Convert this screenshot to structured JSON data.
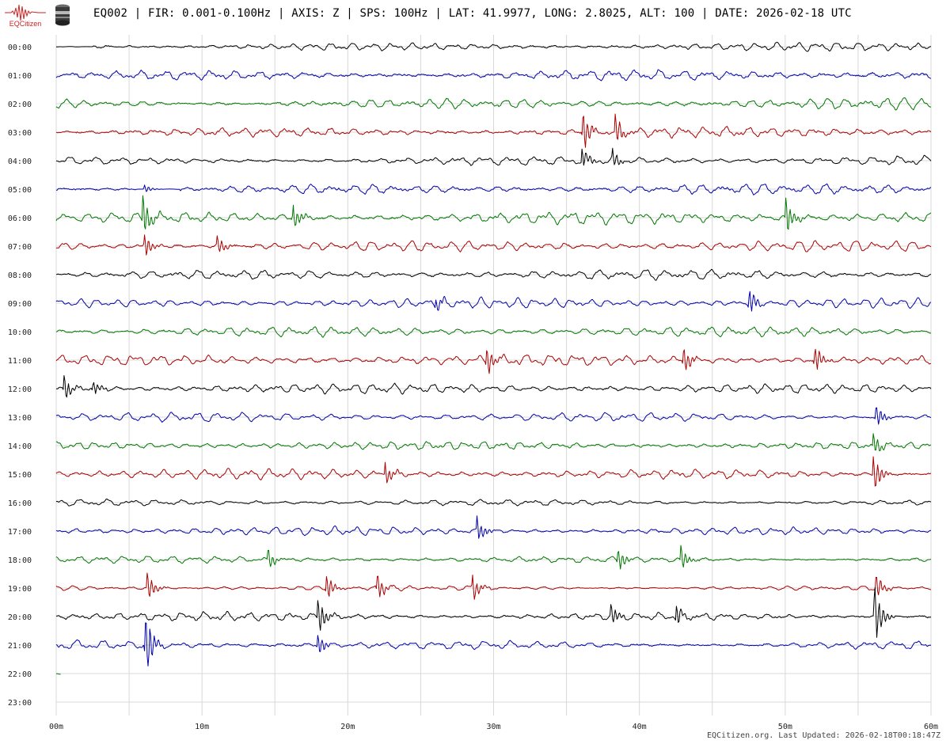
{
  "header": {
    "logo_text": "EQCitizen",
    "logo_icon": "seismogram-logo-icon",
    "sensor_icon": "seismometer-sensor-icon",
    "title": "EQ002 | FIR: 0.001-0.100Hz | AXIS: Z | SPS: 100Hz | LAT: 41.9977, LONG: 2.8025, ALT: 100 | DATE: 2026-02-18 UTC"
  },
  "footer": {
    "text": "EQCitizen.org. Last Updated: 2026-02-18T00:18:47Z"
  },
  "colors": {
    "black": "#000000",
    "blue": "#0000aa",
    "green": "#007700",
    "red": "#aa0000",
    "grid": "#d8d8d8",
    "logo_red": "#cc2222"
  },
  "chart_data": {
    "type": "line",
    "title": "",
    "xlabel": "",
    "ylabel": "",
    "xlim": [
      0,
      60
    ],
    "x_ticks": [
      0,
      10,
      20,
      30,
      40,
      50,
      60
    ],
    "x_tick_labels": [
      "00m",
      "10m",
      "20m",
      "30m",
      "40m",
      "50m",
      "60m"
    ],
    "grid": true,
    "row_labels": [
      "00:00",
      "01:00",
      "02:00",
      "03:00",
      "04:00",
      "05:00",
      "06:00",
      "07:00",
      "08:00",
      "09:00",
      "10:00",
      "11:00",
      "12:00",
      "13:00",
      "14:00",
      "15:00",
      "16:00",
      "17:00",
      "18:00",
      "19:00",
      "20:00",
      "21:00",
      "22:00",
      "23:00"
    ],
    "row_color_cycle": [
      "#000000",
      "#0000aa",
      "#007700",
      "#aa0000"
    ],
    "series": [
      {
        "hour": "00:00",
        "start_min": 0,
        "end_min": 60,
        "amplitude": 0.3,
        "quiet_until_min": 2.5,
        "events": []
      },
      {
        "hour": "01:00",
        "start_min": 0,
        "end_min": 60,
        "amplitude": 0.38,
        "events": []
      },
      {
        "hour": "02:00",
        "start_min": 0,
        "end_min": 60,
        "amplitude": 0.36,
        "events": []
      },
      {
        "hour": "03:00",
        "start_min": 0,
        "end_min": 60,
        "amplitude": 0.34,
        "events": [
          {
            "min": 36.1,
            "amp": 1.4
          },
          {
            "min": 38.3,
            "amp": 1.2
          }
        ]
      },
      {
        "hour": "04:00",
        "start_min": 0,
        "end_min": 60,
        "amplitude": 0.3,
        "events": [
          {
            "min": 36.0,
            "amp": 0.9
          },
          {
            "min": 38.1,
            "amp": 0.7
          }
        ]
      },
      {
        "hour": "05:00",
        "start_min": 0,
        "end_min": 60,
        "amplitude": 0.32,
        "quiet_from_min": 5.5,
        "quiet_until_min": 8.5,
        "events": [
          {
            "min": 6.0,
            "amp": 0.3
          }
        ]
      },
      {
        "hour": "06:00",
        "start_min": 0,
        "end_min": 60,
        "amplitude": 0.4,
        "events": [
          {
            "min": 5.9,
            "amp": 1.6
          },
          {
            "min": 16.2,
            "amp": 1.0
          },
          {
            "min": 50.0,
            "amp": 1.4
          }
        ]
      },
      {
        "hour": "07:00",
        "start_min": 0,
        "end_min": 60,
        "amplitude": 0.34,
        "events": [
          {
            "min": 6.0,
            "amp": 0.9
          },
          {
            "min": 11.0,
            "amp": 0.8
          }
        ]
      },
      {
        "hour": "08:00",
        "start_min": 0,
        "end_min": 60,
        "amplitude": 0.3,
        "events": []
      },
      {
        "hour": "09:00",
        "start_min": 0,
        "end_min": 60,
        "amplitude": 0.32,
        "events": [
          {
            "min": 26.0,
            "amp": 0.6
          },
          {
            "min": 47.5,
            "amp": 1.0
          }
        ]
      },
      {
        "hour": "10:00",
        "start_min": 0,
        "end_min": 60,
        "amplitude": 0.3,
        "events": []
      },
      {
        "hour": "11:00",
        "start_min": 0,
        "end_min": 60,
        "amplitude": 0.34,
        "events": [
          {
            "min": 29.5,
            "amp": 1.0
          },
          {
            "min": 43.0,
            "amp": 1.0
          },
          {
            "min": 52.0,
            "amp": 1.0
          }
        ]
      },
      {
        "hour": "12:00",
        "start_min": 0,
        "end_min": 60,
        "amplitude": 0.3,
        "events": [
          {
            "min": 0.5,
            "amp": 1.0
          },
          {
            "min": 2.5,
            "amp": 0.6
          }
        ]
      },
      {
        "hour": "13:00",
        "start_min": 0,
        "end_min": 60,
        "amplitude": 0.28,
        "events": [
          {
            "min": 56.2,
            "amp": 0.9
          }
        ]
      },
      {
        "hour": "14:00",
        "start_min": 0,
        "end_min": 60,
        "amplitude": 0.26,
        "events": [
          {
            "min": 56.0,
            "amp": 0.8
          }
        ]
      },
      {
        "hour": "15:00",
        "start_min": 0,
        "end_min": 60,
        "amplitude": 0.32,
        "events": [
          {
            "min": 22.5,
            "amp": 0.9
          },
          {
            "min": 56.0,
            "amp": 1.5
          }
        ]
      },
      {
        "hour": "16:00",
        "start_min": 0,
        "end_min": 60,
        "amplitude": 0.2,
        "events": []
      },
      {
        "hour": "17:00",
        "start_min": 0,
        "end_min": 60,
        "amplitude": 0.28,
        "events": [
          {
            "min": 28.8,
            "amp": 1.0
          }
        ]
      },
      {
        "hour": "18:00",
        "start_min": 0,
        "end_min": 60,
        "amplitude": 0.22,
        "events": [
          {
            "min": 14.5,
            "amp": 0.7
          },
          {
            "min": 38.5,
            "amp": 0.8
          },
          {
            "min": 42.8,
            "amp": 0.9
          }
        ]
      },
      {
        "hour": "19:00",
        "start_min": 0,
        "end_min": 60,
        "amplitude": 0.18,
        "events": [
          {
            "min": 6.2,
            "amp": 1.1
          },
          {
            "min": 18.5,
            "amp": 1.0
          },
          {
            "min": 22.0,
            "amp": 0.9
          },
          {
            "min": 28.5,
            "amp": 1.0
          },
          {
            "min": 56.2,
            "amp": 0.9
          }
        ]
      },
      {
        "hour": "20:00",
        "start_min": 0,
        "end_min": 60,
        "amplitude": 0.3,
        "events": [
          {
            "min": 17.9,
            "amp": 1.5
          },
          {
            "min": 38.0,
            "amp": 0.8
          },
          {
            "min": 42.5,
            "amp": 0.8
          },
          {
            "min": 56.1,
            "amp": 2.2
          }
        ]
      },
      {
        "hour": "21:00",
        "start_min": 0,
        "end_min": 60,
        "amplitude": 0.32,
        "events": [
          {
            "min": 6.1,
            "amp": 2.3
          },
          {
            "min": 17.9,
            "amp": 0.8
          }
        ]
      },
      {
        "hour": "22:00",
        "start_min": 0,
        "end_min": 0.3,
        "amplitude": 0.2,
        "events": []
      },
      {
        "hour": "23:00",
        "start_min": 0,
        "end_min": 0,
        "amplitude": 0,
        "events": []
      }
    ]
  }
}
